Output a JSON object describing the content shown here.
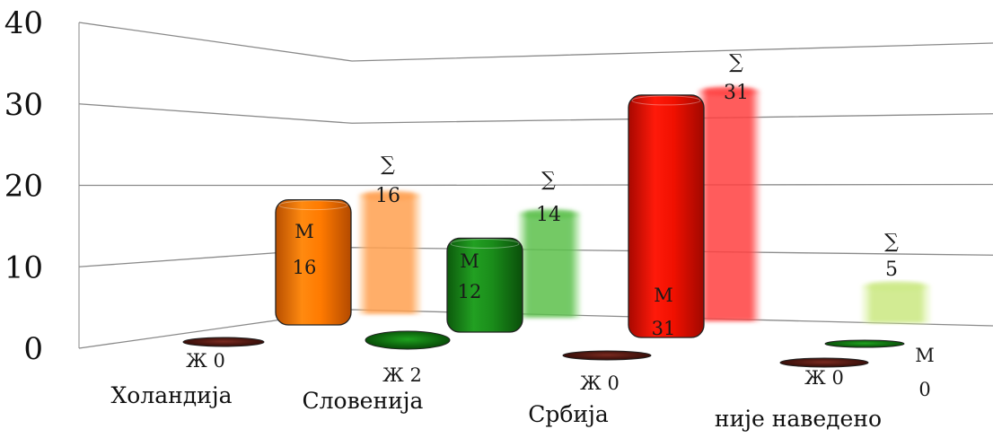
{
  "chart_data": {
    "type": "bar",
    "title": "",
    "xlabel": "",
    "ylabel": "",
    "ylim": [
      0,
      40
    ],
    "y_ticks": [
      "0",
      "10",
      "20",
      "30",
      "40"
    ],
    "grid": true,
    "legend": "none",
    "categories": [
      "Холандија",
      "Словенија",
      "Србија",
      "није наведено"
    ],
    "series": [
      {
        "name": "М",
        "values": [
          0,
          16,
          12,
          31
        ],
        "labels": [
          "",
          "М\n16",
          "М\n12",
          "М\n31"
        ],
        "colors": [
          "#6b1a10",
          "#ff7a00",
          "#1e8c1e",
          "#f02010"
        ],
        "note": "value for 'није наведено' shown as М 0"
      },
      {
        "name": "Ж",
        "values": [
          0,
          2,
          0,
          0
        ],
        "labels": [
          "Ж 0",
          "Ж 2",
          "Ж 0",
          "Ж 0"
        ],
        "colors": [
          "#5a1410",
          "#0b6a0b",
          "#4a0e0a",
          "#4a0e0a"
        ]
      },
      {
        "name": "∑",
        "values": [
          16,
          14,
          31,
          5
        ],
        "labels": [
          "∑\n16",
          "∑\n14",
          "∑\n31",
          "∑\n5"
        ],
        "colors": [
          "#ffa860",
          "#66c855",
          "#ff5050",
          "#d4ee90"
        ]
      }
    ],
    "extra_labels": {
      "m_zero_symbol": "М",
      "m_zero_value": "0"
    }
  }
}
